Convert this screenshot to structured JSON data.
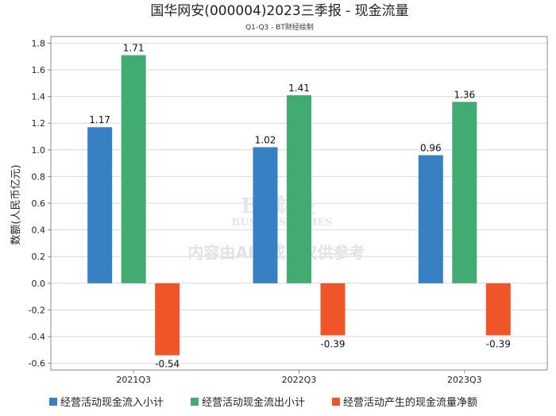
{
  "colors": {
    "inflow": "#3680c3",
    "outflow": "#42ab72",
    "net": "#f0552a",
    "grid": "#d9d9d9",
    "axis": "#888888"
  },
  "watermark": {
    "logo_text": "BT财经",
    "logo_sub": "BUSINESSTIMES",
    "notice": "内容由AI生成，仅供参考"
  },
  "chart_data": {
    "type": "bar",
    "title": "国华网安(000004)2023三季报 - 现金流量",
    "subtitle": "Q1-Q3 - BT财经绘制",
    "xlabel": "",
    "ylabel": "数额(人民币亿元)",
    "categories": [
      "2021Q3",
      "2022Q3",
      "2023Q3"
    ],
    "ylim": [
      -0.65,
      1.85
    ],
    "yticks": [
      "1.8",
      "1.6",
      "1.4",
      "1.2",
      "1.0",
      "0.8",
      "0.6",
      "0.4",
      "0.2",
      "0.0",
      "-0.2",
      "-0.4",
      "-0.6"
    ],
    "ytick_values": [
      1.8,
      1.6,
      1.4,
      1.2,
      1.0,
      0.8,
      0.6,
      0.4,
      0.2,
      0.0,
      -0.2,
      -0.4,
      -0.6
    ],
    "grid": true,
    "legend_position": "bottom",
    "series": [
      {
        "name": "经营活动现金流入小计",
        "color_key": "inflow",
        "values": [
          1.17,
          1.02,
          0.96
        ],
        "labels": [
          "1.17",
          "1.02",
          "0.96"
        ]
      },
      {
        "name": "经营活动现金流出小计",
        "color_key": "outflow",
        "values": [
          1.71,
          1.41,
          1.36
        ],
        "labels": [
          "1.71",
          "1.41",
          "1.36"
        ]
      },
      {
        "name": "经营活动产生的现金流量净额",
        "color_key": "net",
        "values": [
          -0.54,
          -0.39,
          -0.39
        ],
        "labels": [
          "-0.54",
          "-0.39",
          "-0.39"
        ]
      }
    ]
  }
}
